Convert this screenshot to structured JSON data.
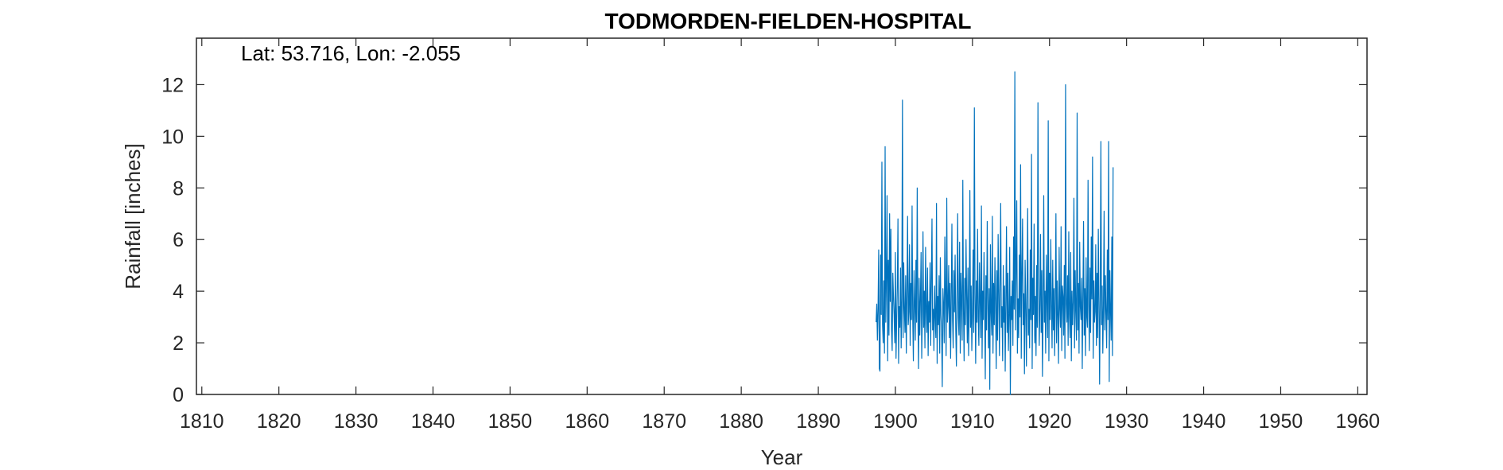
{
  "chart_data": {
    "type": "line",
    "title": "TODMORDEN-FIELDEN-HOSPITAL",
    "annotation": "Lat: 53.716, Lon: -2.055",
    "xlabel": "Year",
    "ylabel": "Rainfall [inches]",
    "xlim": [
      1809.3,
      1961.2
    ],
    "ylim": [
      0,
      13.8
    ],
    "xticks": [
      1810,
      1820,
      1830,
      1840,
      1850,
      1860,
      1870,
      1880,
      1890,
      1900,
      1910,
      1920,
      1930,
      1940,
      1950,
      1960
    ],
    "yticks": [
      0,
      2,
      4,
      6,
      8,
      10,
      12
    ],
    "grid": false,
    "legend": "none",
    "series_color": "#0072BD",
    "series": [
      {
        "x_start": 1897.5,
        "x_step": 0.0833333,
        "values": [
          2.8,
          3.5,
          2.1,
          3.3,
          5.6,
          1.0,
          0.9,
          5.4,
          3.1,
          9.0,
          2.7,
          2.0,
          4.4,
          1.6,
          9.6,
          2.8,
          4.5,
          7.7,
          1.3,
          5.2,
          2.3,
          7.0,
          3.6,
          6.4,
          2.5,
          1.7,
          4.7,
          3.8,
          3.1,
          2.0,
          5.5,
          1.4,
          2.9,
          4.2,
          6.8,
          1.2,
          3.4,
          2.6,
          4.9,
          1.8,
          3.7,
          11.4,
          2.2,
          5.1,
          3.3,
          2.4,
          4.6,
          1.6,
          3.9,
          6.9,
          2.7,
          3.2,
          5.8,
          1.9,
          4.3,
          2.9,
          7.3,
          3.0,
          1.3,
          4.8,
          3.6,
          2.1,
          5.2,
          2.8,
          8.0,
          3.4,
          1.0,
          4.5,
          2.3,
          3.7,
          5.5,
          1.4,
          3.1,
          6.3,
          2.6,
          4.0,
          1.8,
          5.7,
          3.2,
          2.4,
          4.9,
          1.5,
          3.6,
          2.8,
          5.1,
          1.9,
          4.4,
          6.8,
          2.5,
          3.3,
          1.7,
          4.2,
          3.0,
          2.2,
          7.4,
          1.2,
          3.8,
          2.7,
          4.6,
          1.6,
          5.3,
          3.1,
          2.4,
          0.3,
          4.1,
          3.5,
          2.0,
          6.1,
          3.9,
          1.5,
          7.6,
          2.8,
          3.4,
          5.0,
          2.2,
          4.3,
          1.4,
          3.7,
          6.6,
          2.9,
          1.8,
          4.8,
          3.2,
          5.4,
          2.5,
          1.1,
          4.0,
          7.0,
          3.0,
          2.3,
          5.9,
          1.6,
          4.7,
          3.6,
          2.1,
          8.3,
          3.3,
          1.3,
          4.5,
          2.7,
          6.0,
          3.8,
          2.0,
          4.9,
          1.5,
          3.5,
          7.9,
          2.6,
          4.2,
          1.7,
          3.1,
          5.6,
          2.4,
          11.1,
          3.9,
          1.2,
          4.4,
          2.8,
          6.4,
          3.0,
          1.9,
          5.1,
          3.6,
          2.2,
          7.3,
          1.4,
          4.0,
          2.9,
          5.5,
          3.3,
          0.6,
          4.6,
          2.5,
          6.7,
          3.7,
          1.8,
          4.1,
          0.2,
          5.8,
          3.2,
          2.3,
          6.9,
          1.6,
          4.3,
          2.7,
          5.3,
          3.5,
          1.0,
          4.8,
          2.1,
          6.2,
          3.9,
          1.5,
          4.5,
          7.4,
          2.6,
          3.4,
          1.3,
          5.0,
          2.8,
          4.2,
          0.9,
          3.6,
          6.5,
          2.4,
          4.7,
          1.7,
          3.1,
          5.7,
          0.0,
          3.8,
          2.9,
          4.4,
          1.9,
          6.1,
          3.3,
          12.5,
          2.5,
          4.9,
          7.5,
          1.6,
          3.7,
          2.2,
          5.4,
          3.0,
          8.9,
          1.4,
          4.6,
          6.8,
          2.7,
          3.9,
          0.8,
          5.2,
          3.5,
          1.1,
          4.1,
          7.2,
          2.3,
          3.3,
          1.8,
          5.6,
          2.9,
          9.3,
          1.0,
          4.5,
          3.1,
          6.6,
          2.0,
          3.8,
          1.5,
          5.0,
          2.6,
          11.3,
          4.3,
          1.9,
          3.5,
          6.2,
          2.4,
          4.8,
          0.7,
          3.2,
          7.7,
          2.8,
          4.0,
          1.6,
          5.4,
          3.6,
          2.2,
          10.6,
          1.3,
          4.7,
          2.9,
          6.0,
          3.4,
          1.8,
          5.2,
          2.5,
          4.1,
          1.5,
          3.7,
          7.0,
          2.0,
          4.4,
          3.0,
          1.2,
          5.7,
          3.3,
          2.6,
          6.5,
          1.7,
          4.2,
          3.8,
          2.3,
          5.0,
          1.4,
          12.0,
          3.5,
          2.8,
          4.6,
          1.9,
          6.3,
          3.1,
          2.2,
          5.5,
          1.3,
          4.0,
          2.7,
          3.6,
          7.6,
          1.8,
          4.8,
          3.2,
          2.1,
          10.9,
          2.5,
          4.3,
          1.6,
          5.9,
          3.4,
          2.9,
          4.5,
          1.0,
          3.8,
          6.7,
          2.3,
          4.1,
          1.5,
          5.3,
          3.0,
          2.6,
          8.3,
          3.5,
          1.7,
          4.9,
          2.4,
          6.1,
          3.7,
          9.2,
          1.4,
          4.4,
          2.8,
          3.2,
          5.8,
          1.9,
          4.7,
          2.2,
          6.4,
          3.6,
          0.4,
          3.9,
          9.8,
          2.7,
          4.2,
          1.6,
          3.4,
          7.1,
          2.5,
          4.6,
          3.1,
          1.8,
          5.6,
          2.9,
          9.8,
          0.5,
          4.8,
          3.3,
          2.1,
          6.1,
          1.5,
          8.8
        ]
      }
    ]
  }
}
